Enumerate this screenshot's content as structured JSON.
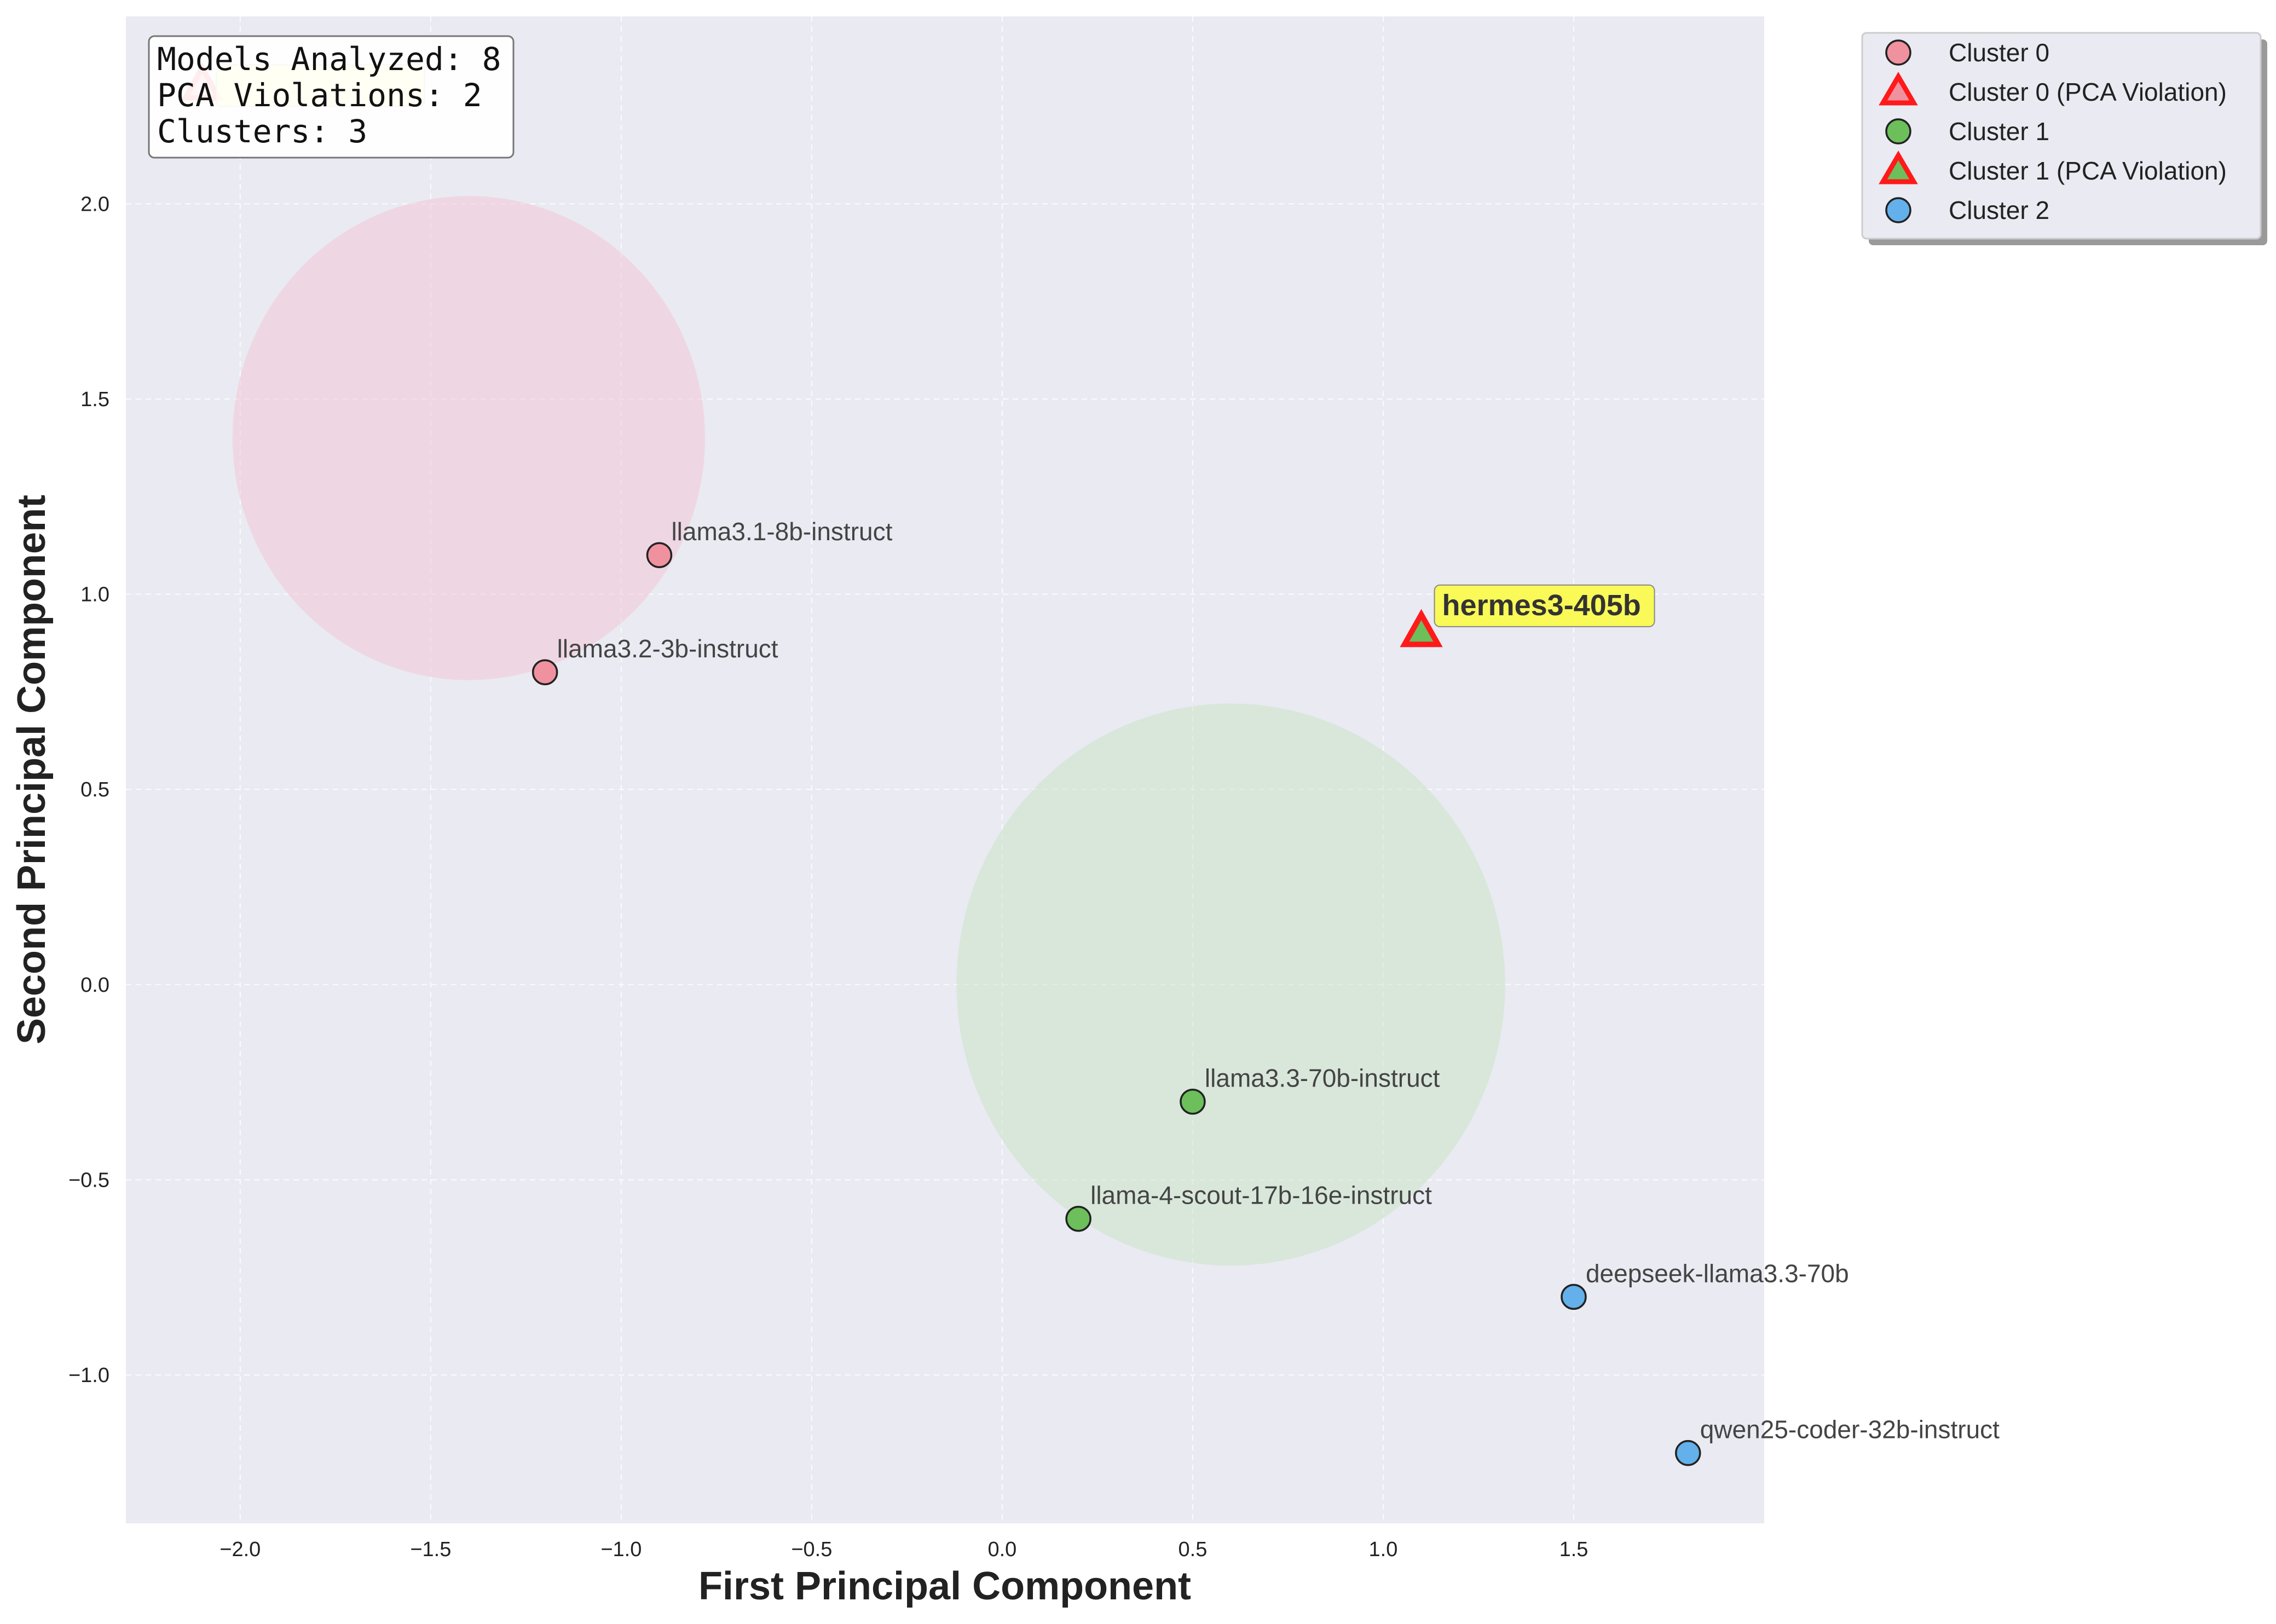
{
  "chart_data": {
    "type": "scatter",
    "xlabel": "First Principal Component",
    "ylabel": "Second Principal Component",
    "xlim": [
      -2.3,
      2.0
    ],
    "ylim": [
      -1.38,
      2.48
    ],
    "xticks": [
      -2.0,
      -1.5,
      -1.0,
      -0.5,
      0.0,
      0.5,
      1.0,
      1.5
    ],
    "yticks": [
      -1.0,
      -0.5,
      0.0,
      0.5,
      1.0,
      1.5,
      2.0
    ],
    "grid": true,
    "legend_position": "outside top-right",
    "colors": {
      "background": "#eaeaf2",
      "cluster_0": "#f0919f",
      "cluster_1": "#6cbf5a",
      "cluster_2": "#63b0ea",
      "violation_edge": "#ff1a1a",
      "highlight": "#fbfb3c"
    },
    "series": [
      {
        "name": "Cluster 0",
        "marker": "circle",
        "color": "#f0919f",
        "points": [
          {
            "x": -0.9,
            "y": 1.1,
            "label": "llama3.1-8b-instruct"
          },
          {
            "x": -1.2,
            "y": 0.8,
            "label": "llama3.2-3b-instruct"
          }
        ]
      },
      {
        "name": "Cluster 0 (PCA Violation)",
        "marker": "triangle",
        "color": "#f0919f",
        "points": [
          {
            "x": -2.1,
            "y": 2.3,
            "label": ""
          }
        ]
      },
      {
        "name": "Cluster 1",
        "marker": "circle",
        "color": "#6cbf5a",
        "points": [
          {
            "x": 0.5,
            "y": -0.3,
            "label": "llama3.3-70b-instruct"
          },
          {
            "x": 0.2,
            "y": -0.6,
            "label": "llama-4-scout-17b-16e-instruct"
          }
        ]
      },
      {
        "name": "Cluster 1 (PCA Violation)",
        "marker": "triangle",
        "color": "#6cbf5a",
        "points": [
          {
            "x": 1.1,
            "y": 0.9,
            "label": "hermes3-405b"
          }
        ]
      },
      {
        "name": "Cluster 2",
        "marker": "circle",
        "color": "#63b0ea",
        "points": [
          {
            "x": 1.5,
            "y": -0.8,
            "label": "deepseek-llama3.3-70b"
          },
          {
            "x": 1.8,
            "y": -1.2,
            "label": "qwen25-coder-32b-instruct"
          }
        ]
      }
    ],
    "cluster_regions": [
      {
        "cluster": "0",
        "cx": -1.4,
        "cy": 1.4,
        "r": 0.62,
        "color": "#f2c4d4"
      },
      {
        "cluster": "1",
        "cx": 0.6,
        "cy": 0.0,
        "r": 0.72,
        "color": "#c8e3c4"
      }
    ],
    "stats_box": [
      "Models Analyzed: 8",
      "PCA Violations: 2",
      "Clusters: 3"
    ]
  }
}
